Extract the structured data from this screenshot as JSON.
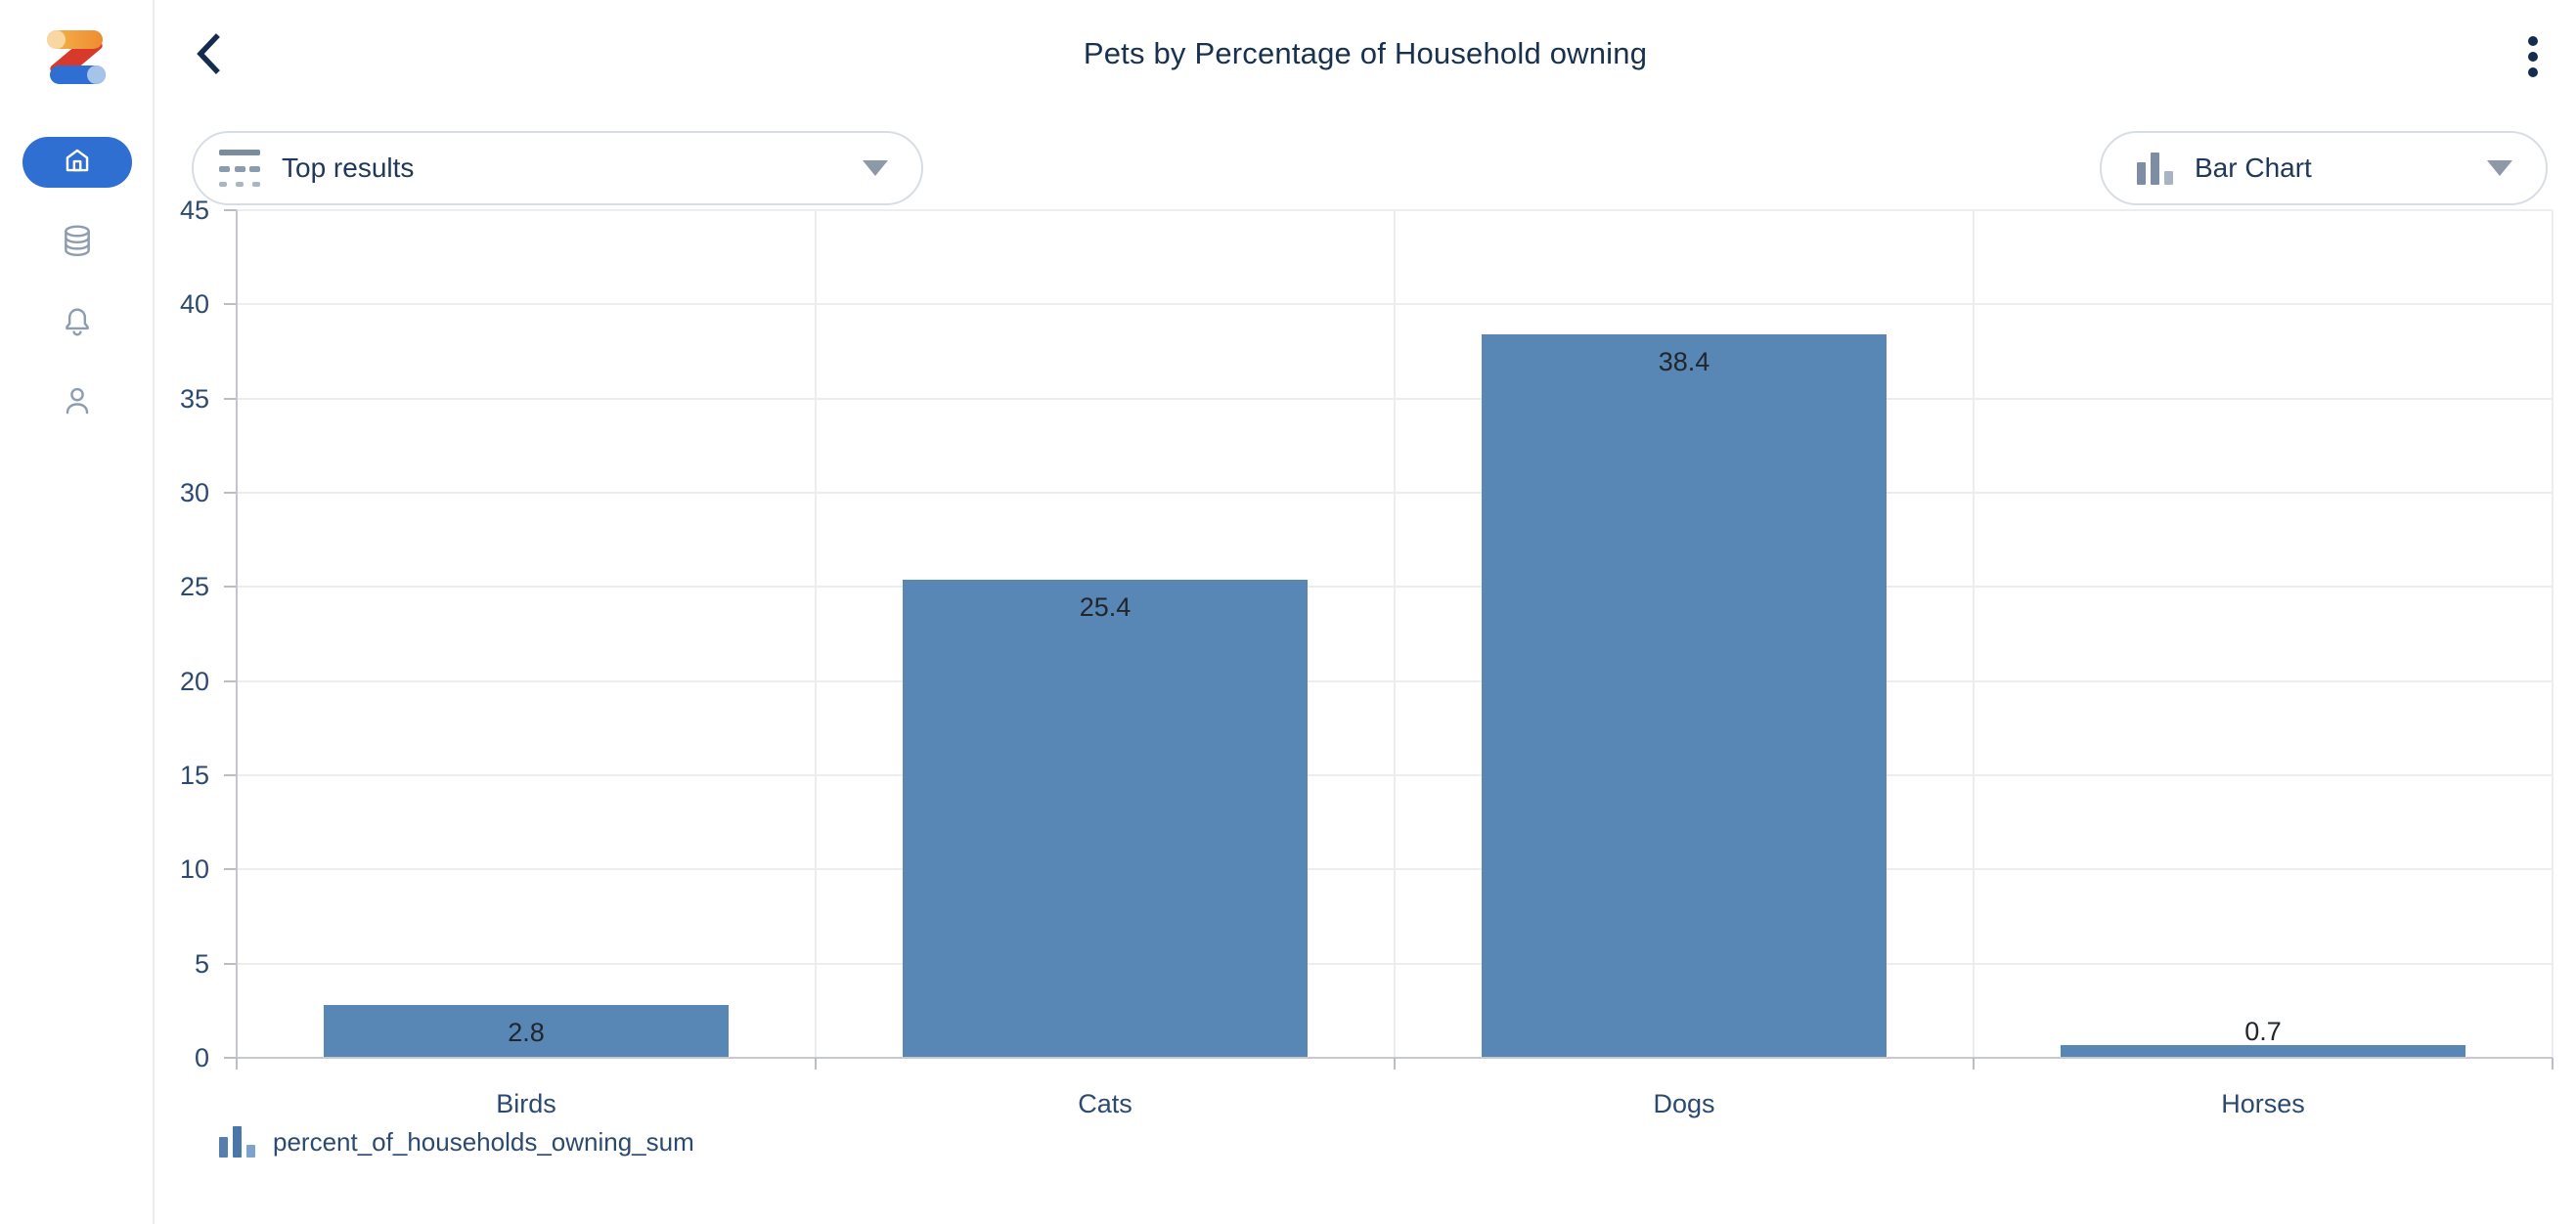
{
  "sidebar": {
    "logo_name": "Zoho Analytics",
    "items": [
      {
        "id": "home",
        "icon": "home-icon",
        "active": true
      },
      {
        "id": "data",
        "icon": "database-icon",
        "active": false
      },
      {
        "id": "notifications",
        "icon": "bell-icon",
        "active": false
      },
      {
        "id": "account",
        "icon": "person-icon",
        "active": false
      }
    ],
    "active_color": "#2e6fd1",
    "icon_color": "#8e9cb0"
  },
  "header": {
    "title": "Pets by Percentage of Household owning",
    "back_icon": "chevron-left-icon",
    "menu_icon": "kebab-menu-icon"
  },
  "toolbar": {
    "top_results_label": "Top results",
    "chart_type_label": "Bar Chart"
  },
  "chart_data": {
    "type": "bar",
    "title": "Pets by Percentage of Household owning",
    "categories": [
      "Birds",
      "Cats",
      "Dogs",
      "Horses"
    ],
    "values": [
      2.8,
      25.4,
      38.4,
      0.7
    ],
    "value_labels": [
      "2.8",
      "25.4",
      "38.4",
      "0.7"
    ],
    "series": [
      {
        "name": "percent_of_households_owning_sum",
        "values": [
          2.8,
          25.4,
          38.4,
          0.7
        ]
      }
    ],
    "xlabel": "",
    "ylabel": "",
    "ylim": [
      0,
      45
    ],
    "ytick_step": 5,
    "grid": "on",
    "legend_position": "bottom-left",
    "bar_color": "#5886b5",
    "axis_text_color": "#2c4a70",
    "value_label_color": "#21262c"
  }
}
